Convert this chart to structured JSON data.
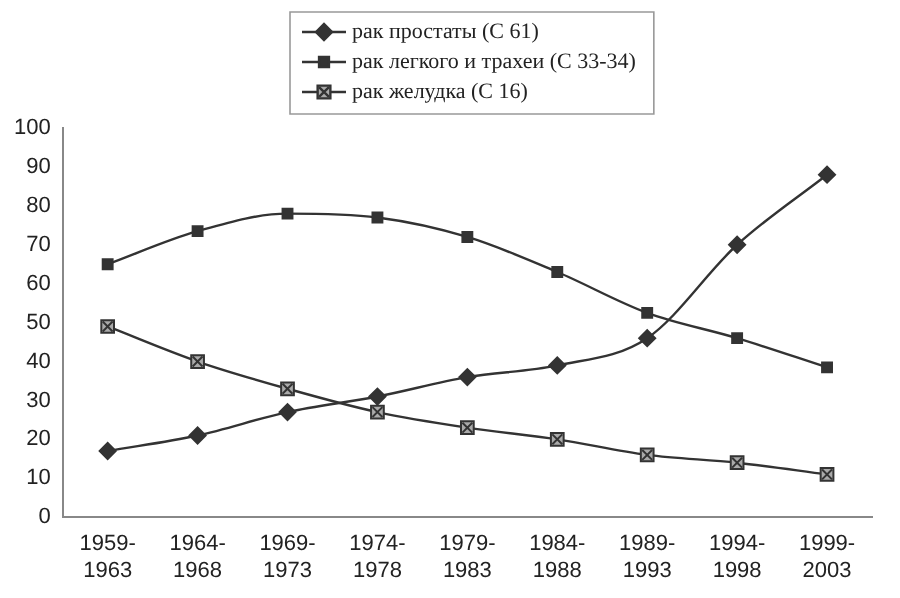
{
  "chart_data": {
    "type": "line",
    "categories": [
      "1959-1963",
      "1964-1968",
      "1969-1973",
      "1974-1978",
      "1979-1983",
      "1984-1988",
      "1989-1993",
      "1994-1998",
      "1999-2003"
    ],
    "series": [
      {
        "name": "рак простаты (С 61)",
        "color": "#333333",
        "marker": "diamond",
        "values": [
          17,
          21,
          27,
          31,
          36,
          39,
          46,
          70,
          88
        ]
      },
      {
        "name": "рак легкого и трахеи (С 33-34)",
        "color": "#333333",
        "marker": "square",
        "values": [
          65,
          73.5,
          78,
          77,
          72,
          63,
          52.5,
          46,
          38.5
        ]
      },
      {
        "name": "рак желудка (С 16)",
        "color": "#333333",
        "marker": "cross",
        "values": [
          49,
          40,
          33,
          27,
          23,
          20,
          16,
          14,
          11
        ]
      }
    ],
    "ylim": [
      0,
      100
    ],
    "yticks": [
      0,
      10,
      20,
      30,
      40,
      50,
      60,
      70,
      80,
      90,
      100
    ],
    "grid": false,
    "legend": "top",
    "line_style": "solid"
  }
}
